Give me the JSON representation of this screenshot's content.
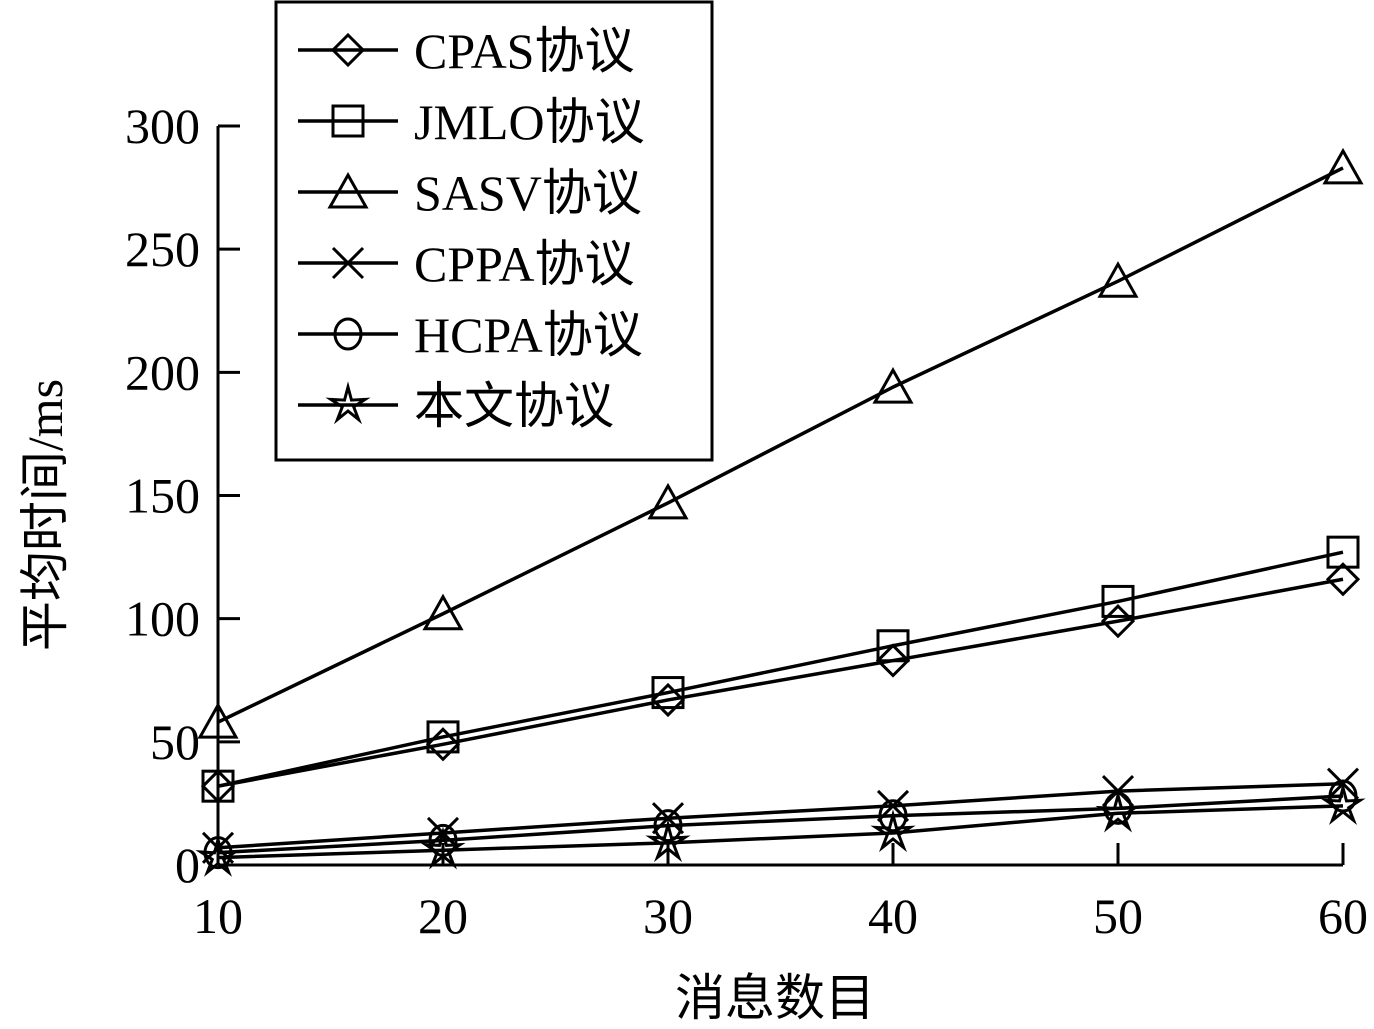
{
  "chart_data": {
    "type": "line",
    "title": "",
    "xlabel": "消息数目",
    "ylabel": "平均时间/ms",
    "x": [
      10,
      20,
      30,
      40,
      50,
      60
    ],
    "xlim": [
      10,
      60
    ],
    "ylim": [
      0,
      300
    ],
    "xticks": [
      "10",
      "20",
      "30",
      "40",
      "50",
      "60"
    ],
    "yticks": [
      "0",
      "50",
      "100",
      "150",
      "200",
      "250",
      "300"
    ],
    "grid": false,
    "legend_position": "top-left",
    "series": [
      {
        "name": "CPAS协议",
        "marker": "diamond",
        "values": [
          32,
          49,
          67,
          83,
          99,
          116
        ]
      },
      {
        "name": "JMLO协议",
        "marker": "square",
        "values": [
          32,
          52,
          70,
          89,
          107,
          127
        ]
      },
      {
        "name": "SASV协议",
        "marker": "triangle",
        "values": [
          58,
          102,
          147,
          194,
          237,
          283
        ]
      },
      {
        "name": "CPPA协议",
        "marker": "x",
        "values": [
          7,
          13,
          19,
          24,
          30,
          33
        ]
      },
      {
        "name": "HCPA协议",
        "marker": "circle",
        "values": [
          5,
          10,
          16,
          20,
          23,
          28
        ]
      },
      {
        "name": "本文协议",
        "marker": "star",
        "values": [
          3,
          6,
          9,
          13,
          21,
          24
        ]
      }
    ]
  }
}
